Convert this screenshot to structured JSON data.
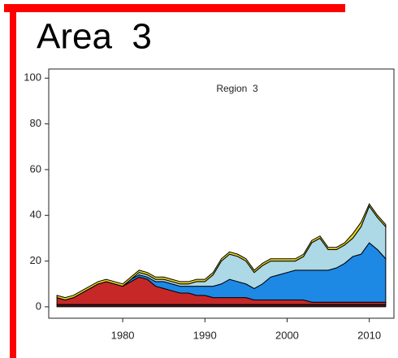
{
  "chart_data": {
    "type": "stacked_area",
    "title": "Area  3",
    "subtitle": "Region  3",
    "x": [
      1972,
      1973,
      1974,
      1975,
      1976,
      1977,
      1978,
      1979,
      1980,
      1981,
      1982,
      1983,
      1984,
      1985,
      1986,
      1987,
      1988,
      1989,
      1990,
      1991,
      1992,
      1993,
      1994,
      1995,
      1996,
      1997,
      1998,
      1999,
      2000,
      2001,
      2002,
      2003,
      2004,
      2005,
      2006,
      2007,
      2008,
      2009,
      2010,
      2011,
      2012
    ],
    "series": [
      {
        "color": "#4a1414",
        "values": [
          1,
          1,
          1,
          1,
          1,
          1,
          1,
          1,
          1,
          1,
          1,
          1,
          1,
          1,
          1,
          1,
          1,
          1,
          1,
          1,
          1,
          1,
          1,
          1,
          1,
          1,
          1,
          1,
          1,
          1,
          1,
          1,
          1,
          1,
          1,
          1,
          1,
          1,
          1,
          1,
          1
        ]
      },
      {
        "color": "#c62828",
        "values": [
          3,
          2,
          3,
          5,
          7,
          9,
          10,
          9,
          8,
          10,
          12,
          11,
          8,
          7,
          6,
          5,
          5,
          4,
          4,
          3,
          3,
          3,
          3,
          3,
          2,
          2,
          2,
          2,
          2,
          2,
          2,
          1,
          1,
          1,
          1,
          1,
          1,
          1,
          1,
          1,
          1
        ]
      },
      {
        "color": "#1e88e5",
        "values": [
          0,
          0,
          0,
          0,
          0,
          0,
          0,
          0,
          0,
          1,
          1,
          1,
          2,
          3,
          3,
          3,
          3,
          4,
          4,
          5,
          6,
          8,
          7,
          6,
          5,
          7,
          10,
          11,
          12,
          13,
          13,
          14,
          14,
          14,
          15,
          17,
          20,
          21,
          26,
          23,
          19
        ]
      },
      {
        "color": "#add8e6",
        "values": [
          0,
          0,
          0,
          0,
          0,
          0,
          0,
          0,
          0,
          0,
          1,
          1,
          1,
          1,
          1,
          1,
          1,
          2,
          2,
          5,
          10,
          11,
          11,
          10,
          7,
          8,
          7,
          6,
          5,
          4,
          6,
          12,
          14,
          9,
          8,
          8,
          8,
          12,
          16,
          14,
          14
        ]
      },
      {
        "color": "#e6d21e",
        "values": [
          1,
          1,
          1,
          1,
          1,
          1,
          1,
          1,
          1,
          1,
          1,
          1,
          1,
          1,
          1,
          1,
          1,
          1,
          1,
          1,
          1,
          1,
          1,
          1,
          1,
          1,
          1,
          1,
          1,
          1,
          1,
          1,
          1,
          1,
          1,
          1,
          2,
          2,
          1,
          1,
          1
        ]
      }
    ],
    "xlim": [
      1971,
      2013
    ],
    "xticks": [
      1980,
      1990,
      2000,
      2010
    ],
    "ylim": [
      -5,
      104
    ],
    "yticks": [
      0,
      20,
      40,
      60,
      80,
      100
    ]
  }
}
